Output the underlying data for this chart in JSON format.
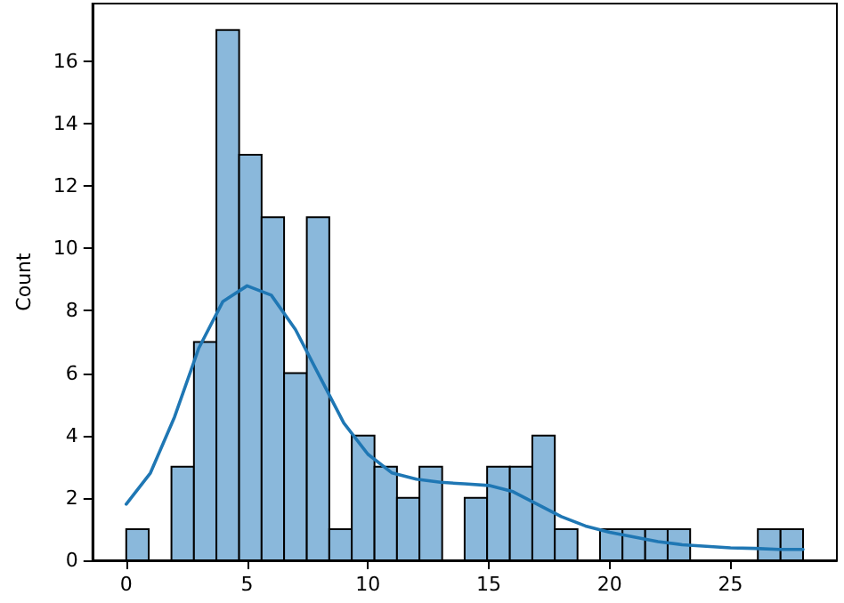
{
  "chart_data": {
    "type": "histogram",
    "ylabel": "Count",
    "color": "#8ab8db",
    "bins": [
      0,
      0.93,
      1.87,
      2.8,
      3.73,
      4.67,
      5.6,
      6.53,
      7.47,
      8.4,
      9.33,
      10.27,
      11.2,
      12.13,
      13.07,
      14,
      14.93,
      15.87,
      16.8,
      17.73,
      18.67,
      19.6,
      20.53,
      21.47,
      22.4,
      23.33,
      24.27,
      25.2,
      26.13,
      27.07,
      28
    ],
    "values": [
      1,
      0,
      3,
      7,
      17,
      13,
      11,
      6,
      11,
      1,
      4,
      3,
      2,
      3,
      0,
      2,
      3,
      3,
      4,
      1,
      0,
      1,
      1,
      1,
      1,
      0,
      0,
      0,
      1,
      1
    ],
    "series": [
      {
        "type": "line",
        "color": "#1f77b4",
        "x": [
          0,
          1,
          2,
          3,
          4,
          5,
          6,
          7,
          8,
          9,
          10,
          11,
          12,
          13,
          14,
          15,
          16,
          17,
          18,
          19,
          20,
          21,
          22,
          23,
          24,
          25,
          26,
          27,
          28
        ],
        "values": [
          1.8,
          2.8,
          4.6,
          6.8,
          8.3,
          8.8,
          8.5,
          7.4,
          5.9,
          4.4,
          3.4,
          2.8,
          2.6,
          2.5,
          2.45,
          2.4,
          2.2,
          1.8,
          1.4,
          1.1,
          0.9,
          0.75,
          0.6,
          0.5,
          0.45,
          0.4,
          0.38,
          0.35,
          0.35
        ]
      }
    ],
    "xlim": [
      -1.4,
      29.4
    ],
    "xticks": [
      0,
      5,
      10,
      15,
      20,
      25
    ],
    "ylim": [
      0,
      17.85
    ],
    "yticks": [
      0,
      2,
      4,
      6,
      8,
      10,
      12,
      14,
      16
    ],
    "grid": false,
    "marker": "none",
    "line_style": "solid"
  }
}
